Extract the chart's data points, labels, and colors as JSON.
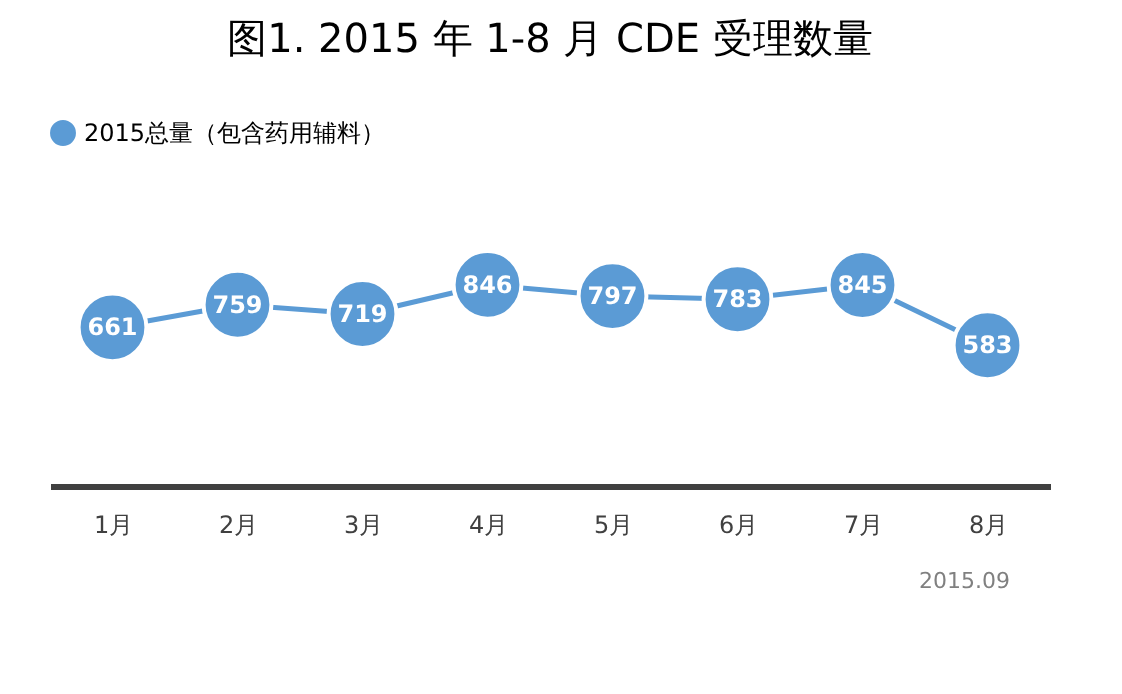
{
  "chart_data": {
    "type": "line",
    "title": "图1. 2015 年 1-8 月 CDE 受理数量",
    "categories": [
      "1月",
      "2月",
      "3月",
      "4月",
      "5月",
      "6月",
      "7月",
      "8月"
    ],
    "series": [
      {
        "name": "2015总量（包含药用辅料）",
        "color": "#5b9bd5",
        "values": [
          661,
          759,
          719,
          846,
          797,
          783,
          845,
          583
        ]
      }
    ],
    "data_labels": true,
    "marker": "circle",
    "line_style": "solid",
    "legend": "top left",
    "grid": false,
    "annotations": [
      "2015.09"
    ]
  }
}
